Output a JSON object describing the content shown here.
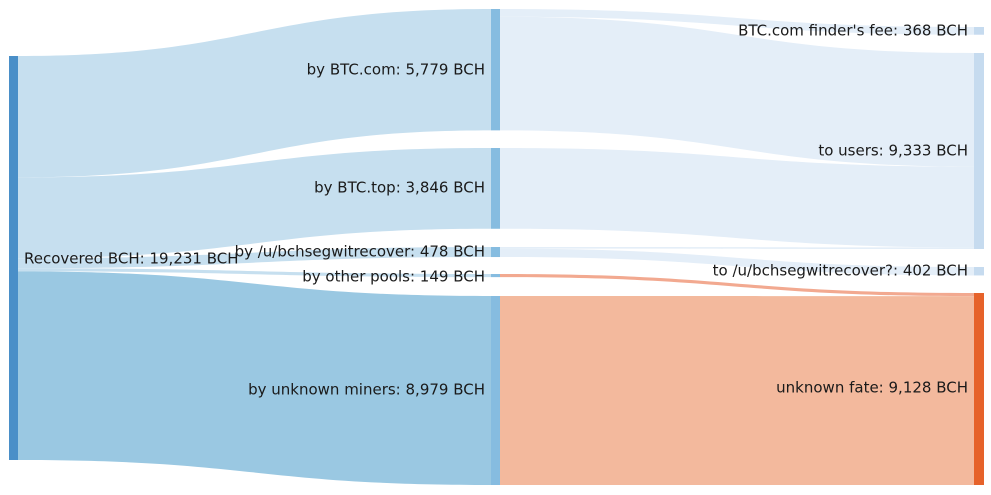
{
  "chart_data": {
    "type": "sankey",
    "nodes": [
      {
        "id": "recovered",
        "label": "Recovered BCH: 19,231 BCH",
        "value": 19231,
        "color": "#4a8fc8"
      },
      {
        "id": "btccom",
        "label": "by BTC.com: 5,779 BCH",
        "value": 5779,
        "color": "#86bce0"
      },
      {
        "id": "btctop",
        "label": "by BTC.top: 3,846 BCH",
        "value": 3846,
        "color": "#86bce0"
      },
      {
        "id": "bchsegwit",
        "label": "by /u/bchsegwitrecover: 478 BCH",
        "value": 478,
        "color": "#86bce0"
      },
      {
        "id": "other",
        "label": "by other pools: 149 BCH",
        "value": 149,
        "color": "#86bce0"
      },
      {
        "id": "unknown_miners",
        "label": "by unknown miners: 8,979 BCH",
        "value": 8979,
        "color": "#86bce0"
      },
      {
        "id": "finder_fee",
        "label": "BTC.com finder's fee: 368 BCH",
        "value": 368,
        "color": "#c6dbef"
      },
      {
        "id": "to_users",
        "label": "to users: 9,333 BCH",
        "value": 9333,
        "color": "#c6dbef"
      },
      {
        "id": "to_bchsegwit",
        "label": "to /u/bchsegwitrecover?: 402 BCH",
        "value": 402,
        "color": "#c6dbef"
      },
      {
        "id": "unknown_fate",
        "label": "unknown fate: 9,128 BCH",
        "value": 9128,
        "color": "#e6622a"
      }
    ],
    "links": [
      {
        "source": "recovered",
        "target": "btccom",
        "value": 5779,
        "color": "#c6dfef"
      },
      {
        "source": "recovered",
        "target": "btctop",
        "value": 3846,
        "color": "#c6dfef"
      },
      {
        "source": "recovered",
        "target": "bchsegwit",
        "value": 478,
        "color": "#c6dfef"
      },
      {
        "source": "recovered",
        "target": "other",
        "value": 149,
        "color": "#c6dfef"
      },
      {
        "source": "recovered",
        "target": "unknown_miners",
        "value": 8979,
        "color": "#9ac8e2"
      },
      {
        "source": "btccom",
        "target": "finder_fee",
        "value": 368,
        "color": "#e4eef8"
      },
      {
        "source": "btccom",
        "target": "to_users",
        "value": 5411,
        "color": "#e4eef8"
      },
      {
        "source": "btctop",
        "target": "to_users",
        "value": 3846,
        "color": "#e4eef8"
      },
      {
        "source": "bchsegwit",
        "target": "to_users",
        "value": 76,
        "color": "#e4eef8"
      },
      {
        "source": "bchsegwit",
        "target": "to_bchsegwit",
        "value": 402,
        "color": "#e4eef8"
      },
      {
        "source": "other",
        "target": "unknown_fate",
        "value": 149,
        "color": "#f2a990"
      },
      {
        "source": "unknown_miners",
        "target": "unknown_fate",
        "value": 8979,
        "color": "#f3b99d"
      }
    ]
  }
}
